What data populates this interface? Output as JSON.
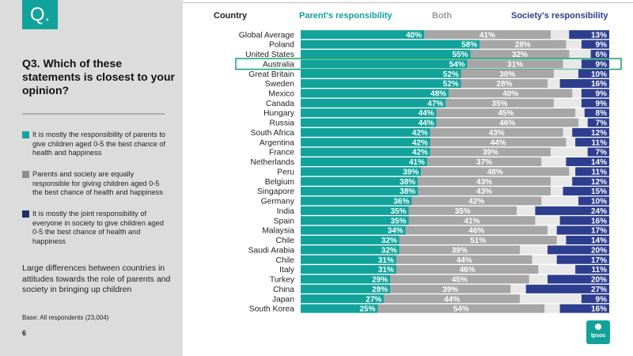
{
  "page": {
    "q_icon": "Q.",
    "question": "Q3. Which of these statements is closest to your opinion?",
    "legend": [
      {
        "label": "It is mostly the responsibility of parents to give children aged 0-5 the best chance of health and happiness",
        "color": "#11a39b"
      },
      {
        "label": "Parents and society are equally responsible for giving children aged 0-5 the best chance of health and happiness",
        "color": "#8c8c8c"
      },
      {
        "label": "It is mostly the joint responsibility of everyone in society to give children aged 0-5 the best chance of health and happiness",
        "color": "#1f2d6b"
      }
    ],
    "summary": "Large differences between countries in attitudes towards the role of parents and society in bringing up children",
    "base": "Base: All respondents (23,004)",
    "page_number": "6",
    "logo_text": "Ipsos"
  },
  "chart_data": {
    "type": "bar",
    "stacked": true,
    "orientation": "horizontal",
    "headers": {
      "country": "Country",
      "parent": "Parent's responsibility",
      "both": "Both",
      "society": "Society's responsibility"
    },
    "highlighted_category": "Australia",
    "categories": [
      "Global Average",
      "Poland",
      "United States",
      "Australia",
      "Great Britain",
      "Sweden",
      "Mexico",
      "Canada",
      "Hungary",
      "Russia",
      "South Africa",
      "Argentina",
      "France",
      "Netherlands",
      "Peru",
      "Belgium",
      "Singapore",
      "Germany",
      "India",
      "Spain",
      "Malaysia",
      "Chile",
      "Saudi Arabia",
      "Chile",
      "Italy",
      "Turkey",
      "China",
      "Japan",
      "South Korea"
    ],
    "series": [
      {
        "name": "Parent's responsibility",
        "color": "#11a39b",
        "values": [
          40,
          58,
          55,
          54,
          52,
          52,
          48,
          47,
          44,
          44,
          42,
          42,
          42,
          41,
          39,
          38,
          38,
          36,
          35,
          35,
          34,
          32,
          32,
          31,
          31,
          29,
          29,
          27,
          25
        ]
      },
      {
        "name": "Both",
        "color": "#a6a6a6",
        "values": [
          41,
          28,
          32,
          31,
          30,
          28,
          40,
          35,
          45,
          46,
          43,
          44,
          39,
          37,
          48,
          43,
          43,
          42,
          35,
          41,
          46,
          51,
          39,
          44,
          46,
          45,
          39,
          44,
          54
        ]
      },
      {
        "name": "Society's responsibility",
        "color": "#2d3e8f",
        "values": [
          13,
          9,
          6,
          9,
          10,
          16,
          9,
          9,
          8,
          7,
          12,
          11,
          7,
          14,
          11,
          12,
          15,
          10,
          24,
          16,
          17,
          14,
          20,
          17,
          11,
          20,
          27,
          9,
          16
        ]
      }
    ],
    "remainder_color": "#e8e8e8",
    "xlim": [
      0,
      100
    ]
  }
}
